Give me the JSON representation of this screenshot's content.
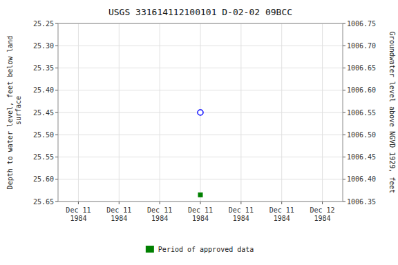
{
  "chart_data": {
    "type": "scatter",
    "title": "USGS 331614112100101 D-02-02 09BCC",
    "y_label": "Depth to water level, feet below land\n surface",
    "y2_label": "Groundwater level above NGVD 1929, feet",
    "categories": [
      "Dec 11\n1984",
      "Dec 11\n1984",
      "Dec 11\n1984",
      "Dec 11\n1984",
      "Dec 11\n1984",
      "Dec 11\n1984",
      "Dec 12\n1984"
    ],
    "series": [
      {
        "color": "blue",
        "marker": "circle",
        "values": [
          null,
          null,
          null,
          25.45,
          null,
          null,
          null
        ]
      },
      {
        "name": "Period of approved data",
        "color": "green",
        "marker": "square",
        "values": [
          null,
          null,
          null,
          25.635,
          null,
          null,
          null
        ]
      }
    ],
    "ylim": [
      25.65,
      25.25
    ],
    "yticks": [
      25.25,
      {
        "value": 25.3,
        "label": "25.30"
      },
      25.35,
      {
        "value": 25.4,
        "label": "25.40"
      },
      25.45,
      {
        "value": 25.5,
        "label": "25.50"
      },
      25.55,
      {
        "value": 25.6,
        "label": "25.60"
      },
      25.65
    ],
    "y2lim": [
      1006.35,
      1006.75
    ],
    "y2ticks": [
      1006.35,
      {
        "value": 1006.4,
        "label": "1006.40"
      },
      1006.45,
      {
        "value": 1006.5,
        "label": "1006.50"
      },
      1006.55,
      {
        "value": 1006.6,
        "label": "1006.60"
      },
      1006.65,
      {
        "value": 1006.7,
        "label": "1006.70"
      },
      1006.75
    ],
    "grid": true
  }
}
